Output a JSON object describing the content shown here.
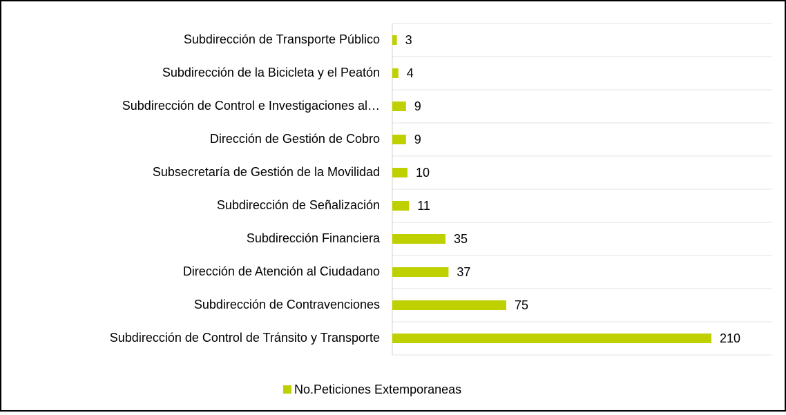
{
  "chart_data": {
    "type": "barh",
    "categories": [
      "Subdirección de Transporte Público",
      "Subdirección de la Bicicleta y el Peatón",
      "Subdirección de Control e Investigaciones al…",
      "Dirección de Gestión de Cobro",
      "Subsecretaría de Gestión de la Movilidad",
      "Subdirección de Señalización",
      "Subdirección Financiera",
      "Dirección de Atención al Ciudadano",
      "Subdirección de Contravenciones",
      "Subdirección de Control de Tránsito y Transporte"
    ],
    "series": [
      {
        "name": "No.Peticiones Extemporaneas",
        "color": "#bfd000",
        "values": [
          3,
          4,
          9,
          9,
          10,
          11,
          35,
          37,
          75,
          210
        ]
      }
    ],
    "xlim": [
      0,
      250
    ],
    "grid": true,
    "legend": "bottom"
  }
}
